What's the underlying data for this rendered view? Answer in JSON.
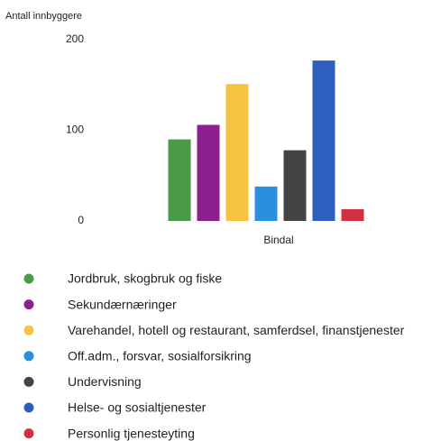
{
  "chart_data": {
    "type": "bar",
    "y_label": "Antall innbyggere",
    "categories": [
      "Bindal"
    ],
    "series": [
      {
        "name": "Jordbruk, skogbruk og fiske",
        "color": "#4a9a48",
        "values": [
          90
        ]
      },
      {
        "name": "Sekundærnæringer",
        "color": "#8e1f8e",
        "values": [
          106
        ]
      },
      {
        "name": "Varehandel, hotell og restaurant, samferdsel, finanstjenester",
        "color": "#f5c242",
        "values": [
          151
        ]
      },
      {
        "name": "Off.adm., forsvar, sosialforsikring",
        "color": "#2a8fdc",
        "values": [
          38
        ]
      },
      {
        "name": "Undervisning",
        "color": "#444444",
        "values": [
          78
        ]
      },
      {
        "name": "Helse- og sosialtjenester",
        "color": "#2e5fbf",
        "values": [
          177
        ]
      },
      {
        "name": "Personlig tjenesteyting",
        "color": "#d03040",
        "values": [
          13
        ]
      }
    ],
    "ylim": [
      0,
      200
    ],
    "yticks": [
      0,
      100,
      200
    ],
    "legend": "bottom"
  }
}
